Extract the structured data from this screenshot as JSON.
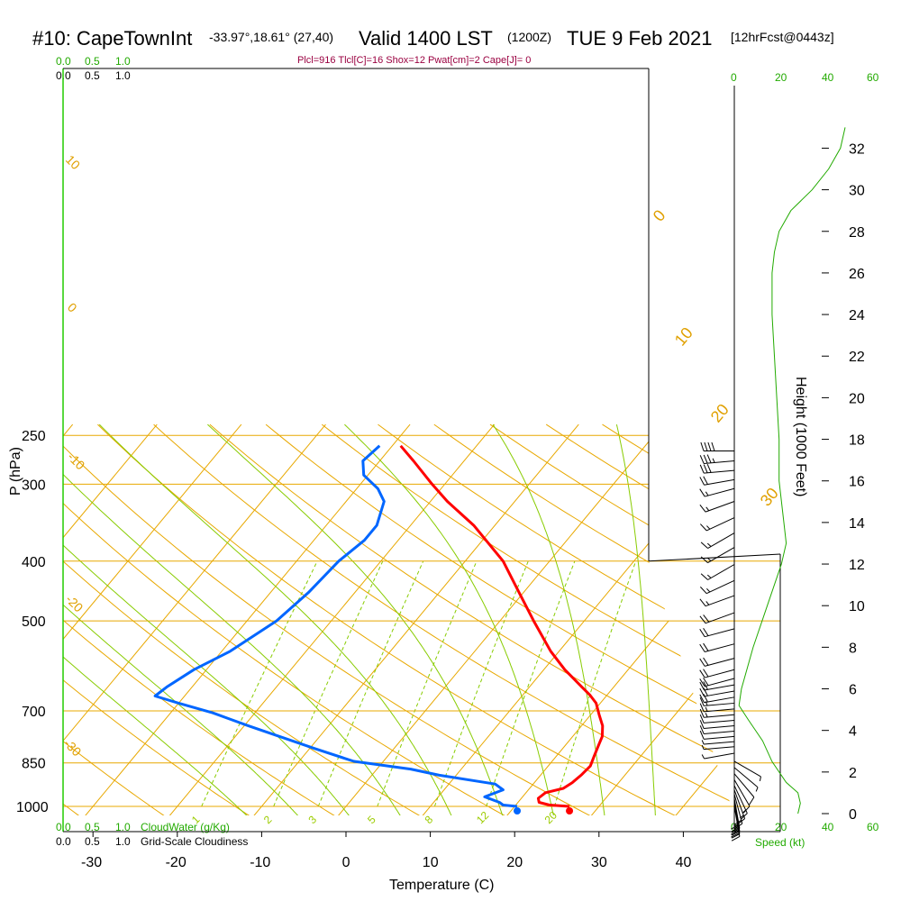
{
  "title": {
    "station": "#10: CapeTownInt",
    "coords": "-33.97°,18.61° (27,40)",
    "valid": "Valid 1400 LST",
    "zulu": "(1200Z)",
    "date": "TUE 9 Feb 2021",
    "forecast": "[12hrFcst@0443z]"
  },
  "params_line": "Plcl=916 Tlcl[C]=16 Shox=12 Pwat[cm]=2 Cape[J]= 0",
  "cloud_scale": {
    "green_labels": [
      "0.0",
      "0.5",
      "1.0"
    ],
    "black_labels": [
      "0.0",
      "0.5",
      "1.0"
    ],
    "cloudwater_label": "CloudWater (g/Kg)",
    "cloudiness_label": "Grid-Scale Cloudiness"
  },
  "speed_scale": {
    "labels": [
      "0",
      "20",
      "40",
      "60"
    ],
    "label": "Speed (kt)"
  },
  "colors": {
    "temperature": "#ff0000",
    "dewpoint": "#0066ff",
    "isotherm": "#e8a800",
    "dry_adiabat": "#e8a800",
    "moist_adiabat": "#88cc00",
    "mixing_ratio": "#88cc00",
    "wind_speed": "#22aa00"
  },
  "chart_data": {
    "type": "line",
    "chart_kind": "skew-T log-P sounding",
    "xlabel": "Temperature (C)",
    "ylabel": "P (hPa)",
    "y2label": "Height (1000 Feet)",
    "x_ticks": [
      -30,
      -20,
      -10,
      0,
      10,
      20,
      30,
      40
    ],
    "p_ticks": [
      250,
      300,
      400,
      500,
      700,
      850,
      1000
    ],
    "height_ticks": [
      0,
      2,
      4,
      6,
      8,
      10,
      12,
      14,
      16,
      18,
      20,
      22,
      24,
      26,
      28,
      30,
      32
    ],
    "xlim": [
      -35,
      45
    ],
    "plim": [
      250,
      1050
    ],
    "isotherm_labels": [
      "0",
      "10",
      "20",
      "30"
    ],
    "dry_adiabat_labels": [
      "10",
      "0",
      "-10",
      "-20",
      "-30"
    ],
    "mixing_ratio_labels": [
      "1",
      "2",
      "3",
      "5",
      "8",
      "12",
      "20"
    ],
    "temperature_series": {
      "name": "Temperature",
      "points": [
        {
          "p": 1000,
          "t": 26.5
        },
        {
          "p": 995,
          "t": 24.0
        },
        {
          "p": 985,
          "t": 22.5
        },
        {
          "p": 970,
          "t": 22.0
        },
        {
          "p": 950,
          "t": 22.3
        },
        {
          "p": 935,
          "t": 24.0
        },
        {
          "p": 915,
          "t": 24.5
        },
        {
          "p": 890,
          "t": 24.8
        },
        {
          "p": 860,
          "t": 25.0
        },
        {
          "p": 830,
          "t": 24.5
        },
        {
          "p": 800,
          "t": 24.0
        },
        {
          "p": 770,
          "t": 23.5
        },
        {
          "p": 740,
          "t": 22.5
        },
        {
          "p": 710,
          "t": 21.0
        },
        {
          "p": 680,
          "t": 19.5
        },
        {
          "p": 660,
          "t": 18.0
        },
        {
          "p": 640,
          "t": 16.2
        },
        {
          "p": 600,
          "t": 12.5
        },
        {
          "p": 560,
          "t": 9.0
        },
        {
          "p": 500,
          "t": 4.0
        },
        {
          "p": 450,
          "t": -0.5
        },
        {
          "p": 400,
          "t": -5.5
        },
        {
          "p": 350,
          "t": -12.5
        },
        {
          "p": 320,
          "t": -18.0
        },
        {
          "p": 300,
          "t": -21.5
        },
        {
          "p": 275,
          "t": -26.0
        },
        {
          "p": 260,
          "t": -29.0
        }
      ]
    },
    "dewpoint_series": {
      "name": "Dewpoint",
      "points": [
        {
          "p": 1000,
          "t": 20.3
        },
        {
          "p": 995,
          "t": 18.5
        },
        {
          "p": 985,
          "t": 17.8
        },
        {
          "p": 965,
          "t": 15.5
        },
        {
          "p": 940,
          "t": 17.0
        },
        {
          "p": 920,
          "t": 15.5
        },
        {
          "p": 890,
          "t": 8.0
        },
        {
          "p": 870,
          "t": 4.0
        },
        {
          "p": 845,
          "t": -3.5
        },
        {
          "p": 835,
          "t": -5.0
        },
        {
          "p": 805,
          "t": -9.5
        },
        {
          "p": 775,
          "t": -14.0
        },
        {
          "p": 740,
          "t": -19.5
        },
        {
          "p": 705,
          "t": -25.0
        },
        {
          "p": 680,
          "t": -30.0
        },
        {
          "p": 662,
          "t": -33.5
        },
        {
          "p": 640,
          "t": -33.0
        },
        {
          "p": 600,
          "t": -31.5
        },
        {
          "p": 560,
          "t": -29.0
        },
        {
          "p": 500,
          "t": -26.5
        },
        {
          "p": 450,
          "t": -25.5
        },
        {
          "p": 400,
          "t": -25.0
        },
        {
          "p": 370,
          "t": -24.0
        },
        {
          "p": 350,
          "t": -24.0
        },
        {
          "p": 320,
          "t": -25.5
        },
        {
          "p": 305,
          "t": -27.5
        },
        {
          "p": 290,
          "t": -30.5
        },
        {
          "p": 275,
          "t": -32.0
        },
        {
          "p": 260,
          "t": -31.5
        }
      ]
    },
    "surface_markers": [
      {
        "name": "Surface temperature",
        "t": 26.5,
        "p": 1000
      },
      {
        "name": "Surface dewpoint",
        "t": 20.3,
        "p": 1000
      }
    ],
    "wind_speed_profile": {
      "name": "Wind speed",
      "x_unit": "kt",
      "xlim": [
        0,
        60
      ],
      "points": [
        {
          "h": 0,
          "s": 27
        },
        {
          "h": 0.5,
          "s": 28
        },
        {
          "h": 1.0,
          "s": 27
        },
        {
          "h": 1.5,
          "s": 22
        },
        {
          "h": 2.5,
          "s": 16
        },
        {
          "h": 3.5,
          "s": 12
        },
        {
          "h": 4.5,
          "s": 6
        },
        {
          "h": 5.2,
          "s": 2
        },
        {
          "h": 6.0,
          "s": 3
        },
        {
          "h": 8.0,
          "s": 8
        },
        {
          "h": 10.0,
          "s": 14
        },
        {
          "h": 12.0,
          "s": 20
        },
        {
          "h": 13.0,
          "s": 22
        },
        {
          "h": 14.0,
          "s": 21
        },
        {
          "h": 16.0,
          "s": 19
        },
        {
          "h": 18.0,
          "s": 19
        },
        {
          "h": 20.0,
          "s": 18
        },
        {
          "h": 22.0,
          "s": 17
        },
        {
          "h": 24.0,
          "s": 16
        },
        {
          "h": 26.0,
          "s": 16
        },
        {
          "h": 27.0,
          "s": 17
        },
        {
          "h": 28.0,
          "s": 19
        },
        {
          "h": 29.0,
          "s": 24
        },
        {
          "h": 30.0,
          "s": 33
        },
        {
          "h": 31.0,
          "s": 40
        },
        {
          "h": 32.0,
          "s": 45
        },
        {
          "h": 33.0,
          "s": 47
        }
      ]
    },
    "wind_barbs": [
      {
        "p": 1000,
        "dir": 170,
        "spd": 25
      },
      {
        "p": 990,
        "dir": 170,
        "spd": 25
      },
      {
        "p": 980,
        "dir": 170,
        "spd": 25
      },
      {
        "p": 970,
        "dir": 170,
        "spd": 20
      },
      {
        "p": 955,
        "dir": 165,
        "spd": 20
      },
      {
        "p": 940,
        "dir": 160,
        "spd": 15
      },
      {
        "p": 925,
        "dir": 155,
        "spd": 15
      },
      {
        "p": 905,
        "dir": 150,
        "spd": 10
      },
      {
        "p": 885,
        "dir": 140,
        "spd": 10
      },
      {
        "p": 865,
        "dir": 130,
        "spd": 5
      },
      {
        "p": 845,
        "dir": 120,
        "spd": 5
      },
      {
        "p": 820,
        "dir": 260,
        "spd": 5
      },
      {
        "p": 800,
        "dir": 265,
        "spd": 5
      },
      {
        "p": 785,
        "dir": 265,
        "spd": 5
      },
      {
        "p": 770,
        "dir": 265,
        "spd": 10
      },
      {
        "p": 755,
        "dir": 265,
        "spd": 10
      },
      {
        "p": 740,
        "dir": 265,
        "spd": 10
      },
      {
        "p": 725,
        "dir": 265,
        "spd": 10
      },
      {
        "p": 710,
        "dir": 265,
        "spd": 15
      },
      {
        "p": 695,
        "dir": 265,
        "spd": 15
      },
      {
        "p": 680,
        "dir": 265,
        "spd": 15
      },
      {
        "p": 665,
        "dir": 260,
        "spd": 20
      },
      {
        "p": 650,
        "dir": 260,
        "spd": 20
      },
      {
        "p": 635,
        "dir": 260,
        "spd": 20
      },
      {
        "p": 620,
        "dir": 255,
        "spd": 20
      },
      {
        "p": 600,
        "dir": 255,
        "spd": 20
      },
      {
        "p": 575,
        "dir": 255,
        "spd": 20
      },
      {
        "p": 545,
        "dir": 255,
        "spd": 20
      },
      {
        "p": 515,
        "dir": 255,
        "spd": 20
      },
      {
        "p": 485,
        "dir": 250,
        "spd": 20
      },
      {
        "p": 455,
        "dir": 250,
        "spd": 15
      },
      {
        "p": 430,
        "dir": 245,
        "spd": 15
      },
      {
        "p": 405,
        "dir": 240,
        "spd": 15
      },
      {
        "p": 380,
        "dir": 240,
        "spd": 15
      },
      {
        "p": 360,
        "dir": 240,
        "spd": 15
      },
      {
        "p": 340,
        "dir": 245,
        "spd": 15
      },
      {
        "p": 320,
        "dir": 250,
        "spd": 15
      },
      {
        "p": 305,
        "dir": 255,
        "spd": 15
      },
      {
        "p": 295,
        "dir": 260,
        "spd": 20
      },
      {
        "p": 285,
        "dir": 265,
        "spd": 30
      },
      {
        "p": 275,
        "dir": 265,
        "spd": 35
      },
      {
        "p": 265,
        "dir": 270,
        "spd": 40
      }
    ]
  }
}
